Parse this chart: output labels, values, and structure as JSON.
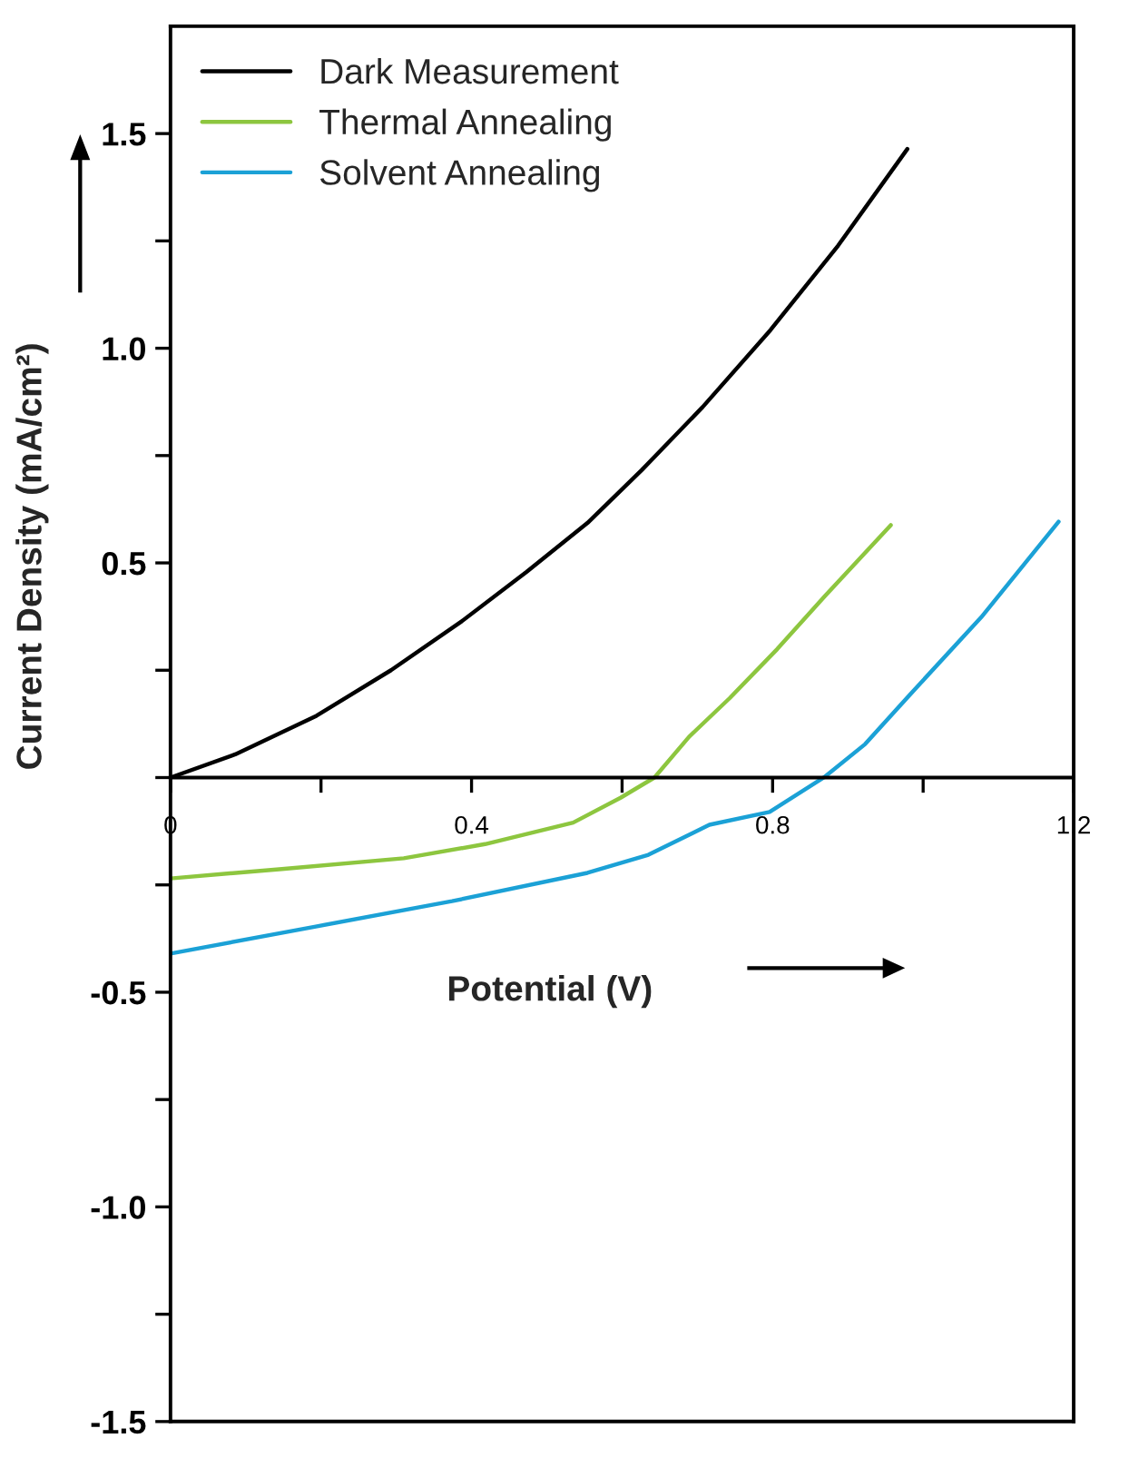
{
  "chart_data": {
    "type": "line",
    "xlabel": "Potential (V)",
    "ylabel": "Current Density (mA/cm²)",
    "xlim": [
      0,
      1.2
    ],
    "ylim": [
      -1.5,
      1.75
    ],
    "xticks": [
      0,
      {
        "value": 0.2,
        "label": null
      },
      0.4,
      {
        "value": 0.6,
        "label": null
      },
      0.8,
      {
        "value": 1.0,
        "label": null
      },
      1.2
    ],
    "yticks": [
      -1.5,
      {
        "value": -1.25,
        "label": null
      },
      {
        "value": -1.0,
        "label": "-1.0"
      },
      {
        "value": -0.75,
        "label": null
      },
      -0.5,
      {
        "value": -0.25,
        "label": null
      },
      {
        "value": 0,
        "label": null
      },
      {
        "value": 0.25,
        "label": null
      },
      0.5,
      {
        "value": 0.75,
        "label": null
      },
      {
        "value": 1.0,
        "label": "1.0"
      },
      {
        "value": 1.25,
        "label": null
      },
      1.5
    ],
    "grid": false,
    "legend": "top left",
    "marker": "none",
    "line_style": "solid",
    "series": [
      {
        "name": "Dark Measurement",
        "color": "#000000",
        "x": [
          0,
          0.086,
          0.194,
          0.293,
          0.387,
          0.473,
          0.554,
          0.626,
          0.707,
          0.797,
          0.887,
          0.979
        ],
        "values": [
          0,
          0.054,
          0.144,
          0.25,
          0.364,
          0.479,
          0.593,
          0.716,
          0.863,
          1.042,
          1.239,
          1.464
        ]
      },
      {
        "name": "Thermal Annealing",
        "color": "#8dc63f",
        "x": [
          0,
          0.148,
          0.31,
          0.418,
          0.535,
          0.598,
          0.643,
          0.689,
          0.743,
          0.806,
          0.869,
          0.957
        ],
        "values": [
          -0.235,
          -0.213,
          -0.188,
          -0.155,
          -0.105,
          -0.047,
          0,
          0.095,
          0.185,
          0.299,
          0.422,
          0.588
        ]
      },
      {
        "name": "Solvent Annealing",
        "color": "#1ba1d6",
        "x": [
          0,
          0.193,
          0.374,
          0.554,
          0.635,
          0.716,
          0.796,
          0.868,
          0.923,
          0.986,
          1.077,
          1.18
        ],
        "values": [
          -0.41,
          -0.347,
          -0.288,
          -0.222,
          -0.18,
          -0.11,
          -0.08,
          0,
          0.078,
          0.2,
          0.373,
          0.596
        ]
      }
    ]
  }
}
